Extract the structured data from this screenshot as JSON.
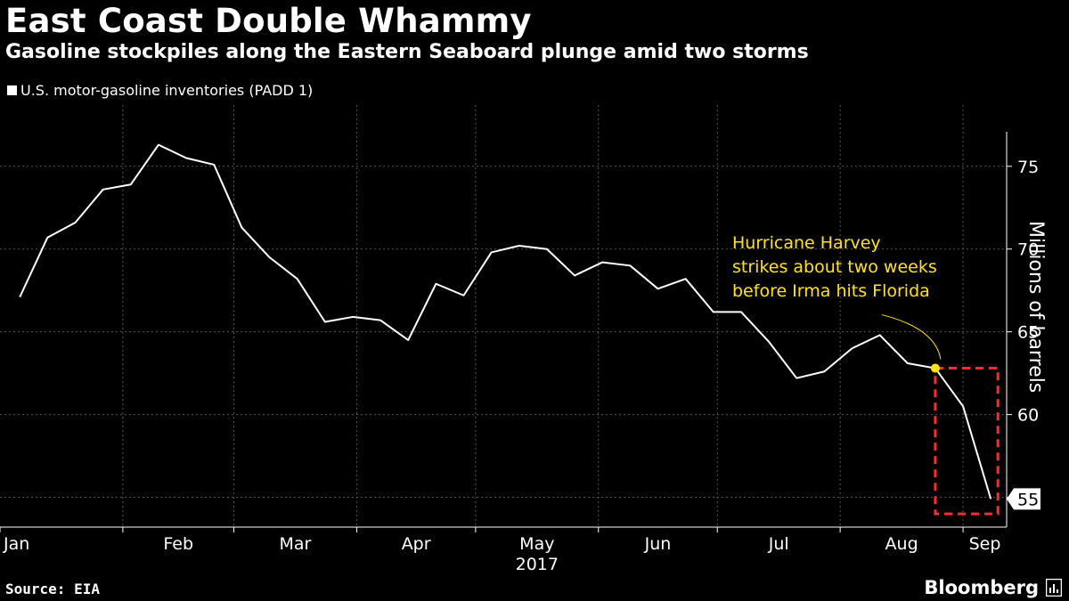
{
  "title": "East Coast Double Whammy",
  "subtitle": "Gasoline stockpiles along the Eastern Seaboard plunge amid two storms",
  "source": "Source: EIA",
  "brand": "Bloomberg",
  "colors": {
    "background": "#000000",
    "line": "#ffffff",
    "grid": "#555555",
    "annotation": "#ffe600",
    "highlight_box": "#ff2a2a"
  },
  "chart_data": {
    "type": "line",
    "title": "East Coast Double Whammy",
    "subtitle": "Gasoline stockpiles along the Eastern Seaboard plunge amid two storms",
    "ylabel": "Millions of barrels",
    "xlabel": "",
    "x_tick_labels": [
      "Jan",
      "Feb",
      "Mar",
      "Apr",
      "May",
      "Jun",
      "Jul",
      "Aug",
      "Sep"
    ],
    "x_year_label": "2017",
    "y_ticks": [
      55,
      60,
      65,
      70,
      75
    ],
    "ylim": [
      53.2,
      78.7
    ],
    "grid": true,
    "legend_position": "top-left",
    "series": [
      {
        "name": "U.S. motor-gasoline inventories (PADD 1)",
        "x": [
          "2017-01-06",
          "2017-01-13",
          "2017-01-20",
          "2017-01-27",
          "2017-02-03",
          "2017-02-10",
          "2017-02-17",
          "2017-02-24",
          "2017-03-03",
          "2017-03-10",
          "2017-03-17",
          "2017-03-24",
          "2017-03-31",
          "2017-04-07",
          "2017-04-14",
          "2017-04-21",
          "2017-04-28",
          "2017-05-05",
          "2017-05-12",
          "2017-05-19",
          "2017-05-26",
          "2017-06-02",
          "2017-06-09",
          "2017-06-16",
          "2017-06-23",
          "2017-06-30",
          "2017-07-07",
          "2017-07-14",
          "2017-07-21",
          "2017-07-28",
          "2017-08-04",
          "2017-08-11",
          "2017-08-18",
          "2017-08-25",
          "2017-09-01",
          "2017-09-08"
        ],
        "values": [
          67.1,
          70.7,
          71.6,
          73.6,
          73.9,
          76.3,
          75.5,
          75.1,
          71.3,
          69.5,
          68.2,
          65.6,
          65.9,
          65.7,
          64.5,
          67.9,
          67.2,
          69.8,
          70.2,
          70.0,
          68.4,
          69.2,
          69.0,
          67.6,
          68.2,
          66.2,
          66.2,
          64.4,
          62.2,
          62.6,
          64.0,
          64.8,
          63.1,
          62.8,
          60.5,
          54.9
        ]
      }
    ],
    "last_value_label": "55",
    "annotations": [
      {
        "text_lines": [
          "Hurricane Harvey",
          "strikes about two weeks",
          "before Irma hits Florida"
        ],
        "x": "2017-08-25",
        "y": 62.8
      }
    ],
    "highlight_box": {
      "x_start": "2017-08-25",
      "x_end": "2017-09-08",
      "y_low": 54.0,
      "y_high": 62.8
    }
  }
}
